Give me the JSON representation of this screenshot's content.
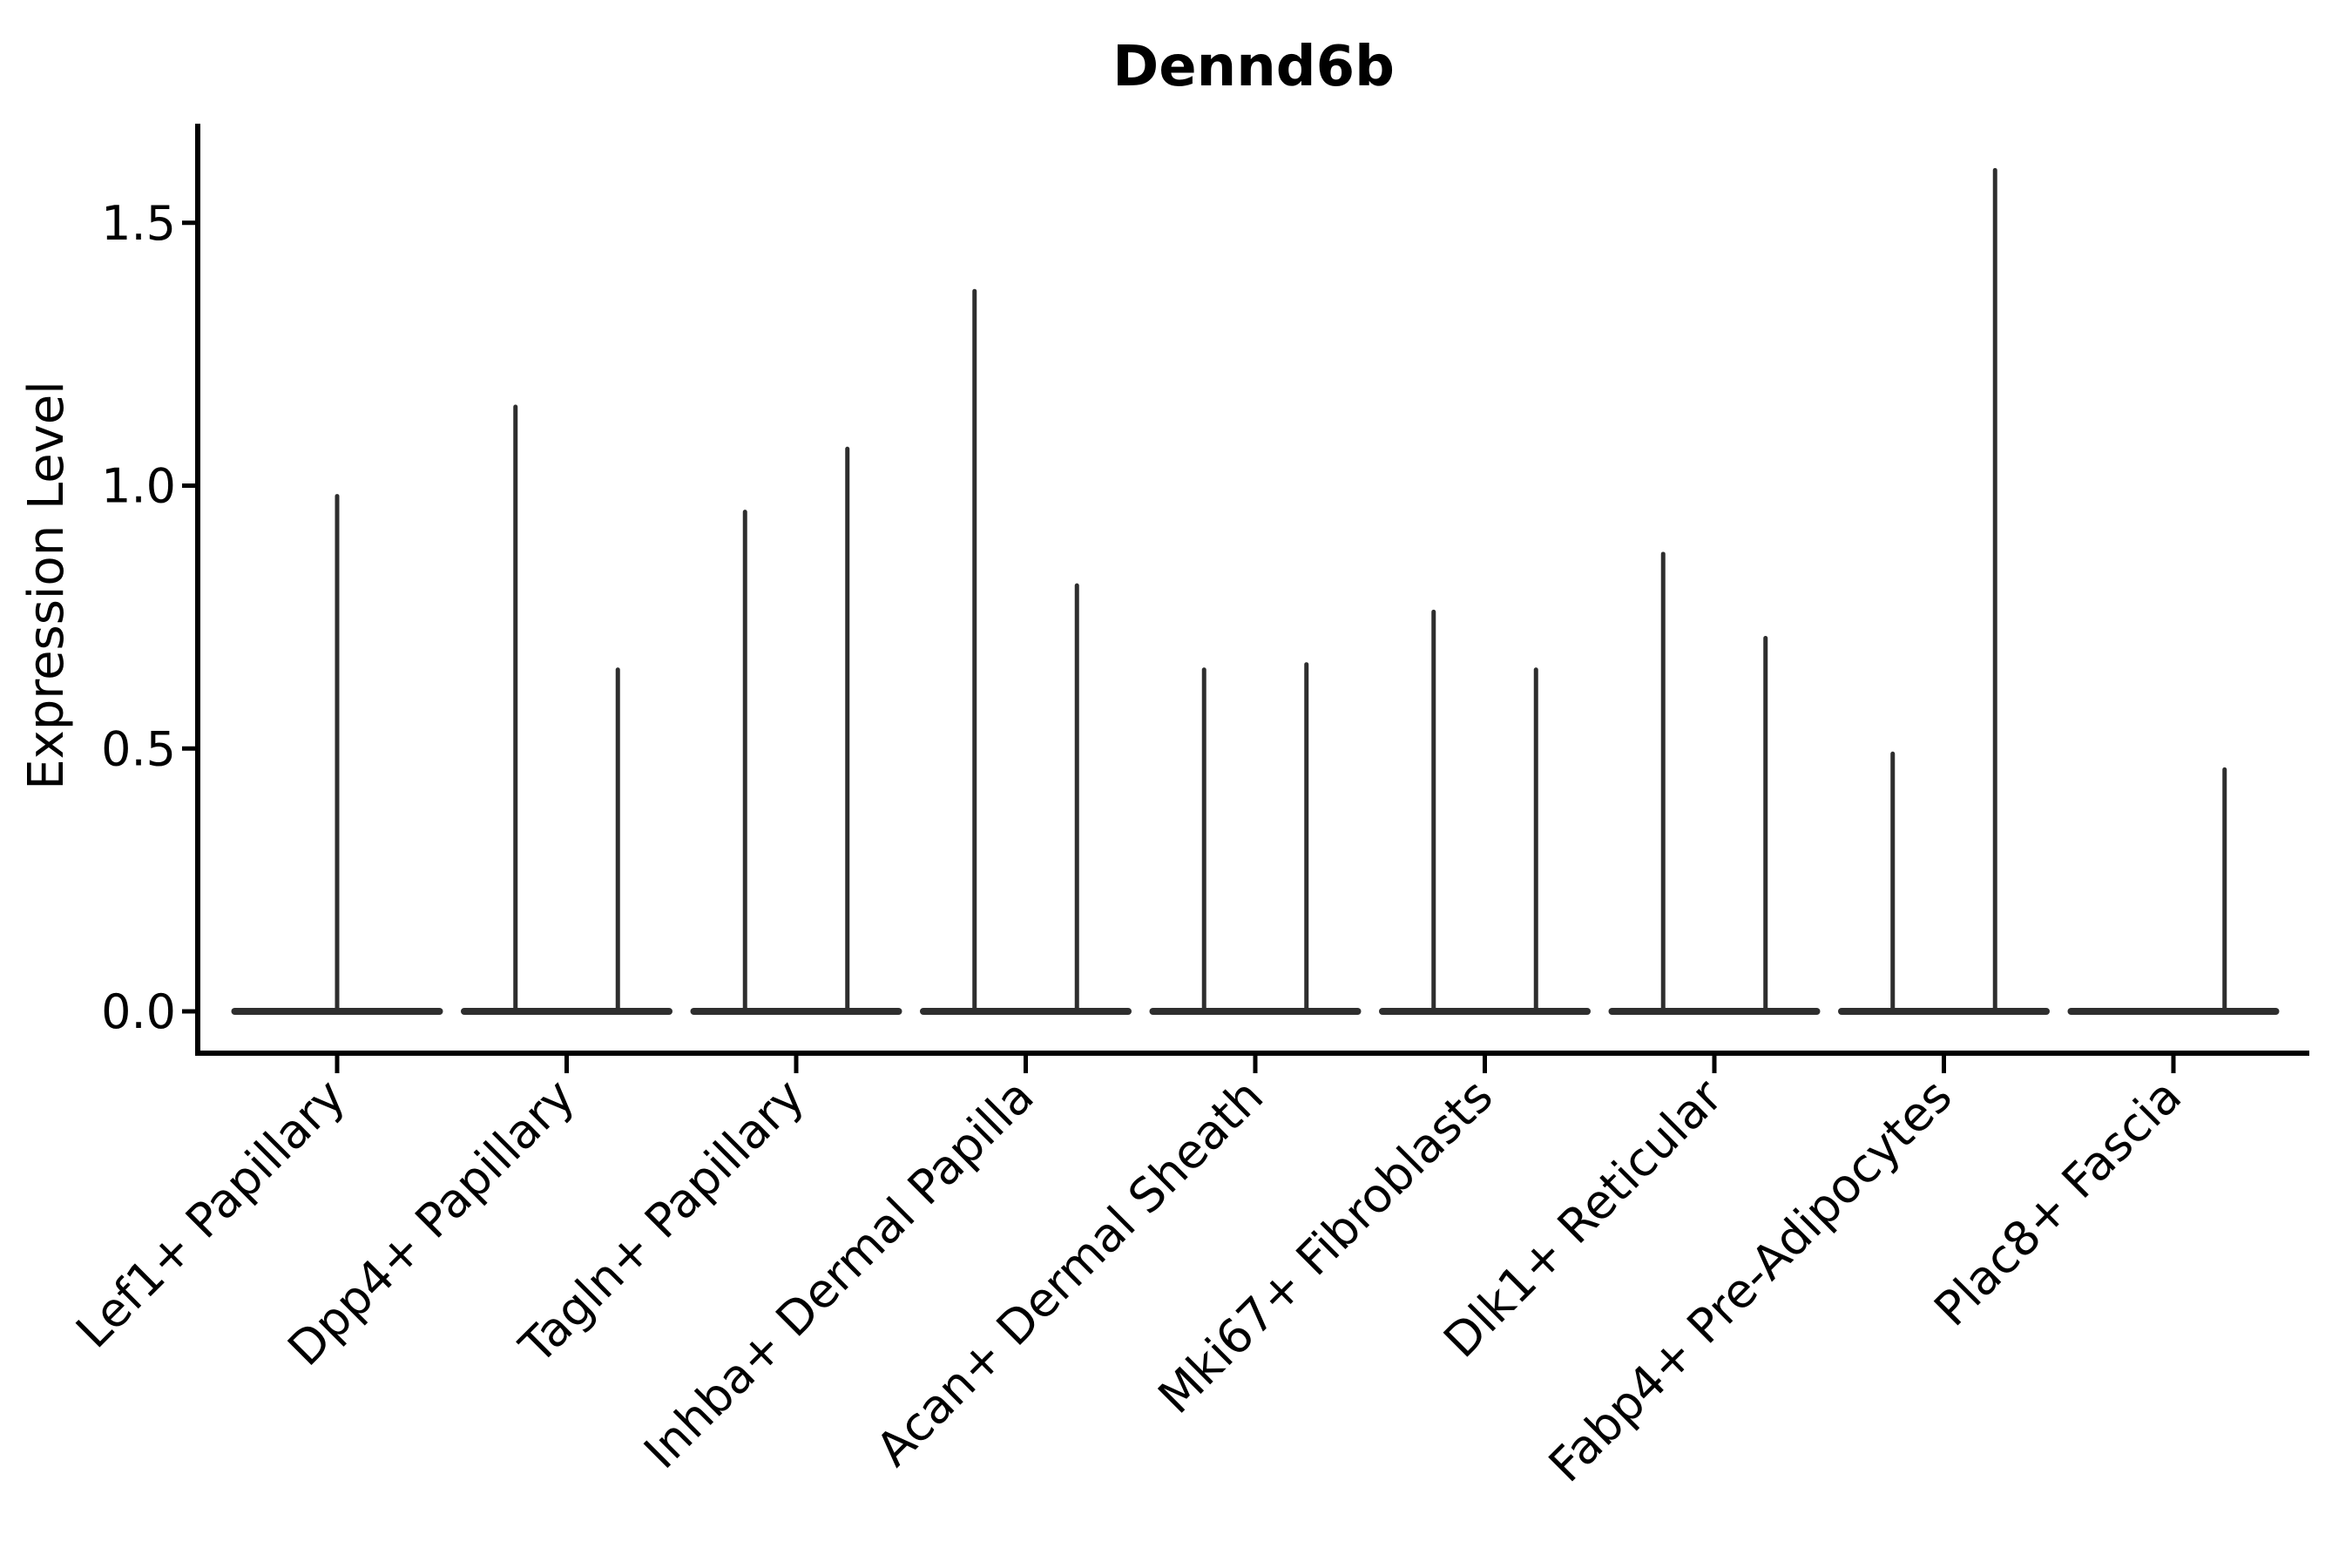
{
  "figure": {
    "title": "Dennd6b",
    "ylabel": "Expression Level"
  },
  "chart_data": {
    "type": "violin",
    "title": "Dennd6b",
    "xlabel": "",
    "ylabel": "Expression Level",
    "ylim": [
      0,
      1.69
    ],
    "yticks": [
      0.0,
      0.5,
      1.0,
      1.5
    ],
    "ytick_labels": [
      "0.0",
      "0.5",
      "1.0",
      "1.5"
    ],
    "grid": false,
    "legend": "none",
    "description": "Seurat-style violin plot of Dennd6b expression; nearly all density sits at 0 so each violin collapses to a flat baseline at 0 with a thin vertical spike reaching its maximum expression value. Most categories contain two side-by-side violins (split groups); Lef1+ Papillary has a single centered violin; the left violin of Plac8+ Fascia has maximum 0 (no spike).",
    "categories": [
      {
        "label": "Lef1+ Papillary",
        "violins": [
          {
            "pos": "center",
            "max": 0.98
          }
        ]
      },
      {
        "label": "Dpp4+ Papillary",
        "violins": [
          {
            "pos": "left",
            "max": 1.15
          },
          {
            "pos": "right",
            "max": 0.65
          }
        ]
      },
      {
        "label": "Tagln+ Papillary",
        "violins": [
          {
            "pos": "left",
            "max": 0.95
          },
          {
            "pos": "right",
            "max": 1.07
          }
        ]
      },
      {
        "label": "Inhba+ Dermal Papilla",
        "violins": [
          {
            "pos": "left",
            "max": 1.37
          },
          {
            "pos": "right",
            "max": 0.81
          }
        ]
      },
      {
        "label": "Acan+ Dermal Sheath",
        "violins": [
          {
            "pos": "left",
            "max": 0.65
          },
          {
            "pos": "right",
            "max": 0.66
          }
        ]
      },
      {
        "label": "Mki67+ Fibroblasts",
        "violins": [
          {
            "pos": "left",
            "max": 0.76
          },
          {
            "pos": "right",
            "max": 0.65
          }
        ]
      },
      {
        "label": "Dlk1+ Reticular",
        "violins": [
          {
            "pos": "left",
            "max": 0.87
          },
          {
            "pos": "right",
            "max": 0.71
          }
        ]
      },
      {
        "label": "Fabp4+ Pre-Adipocytes",
        "violins": [
          {
            "pos": "left",
            "max": 0.49
          },
          {
            "pos": "right",
            "max": 1.6
          }
        ]
      },
      {
        "label": "Plac8+ Fascia",
        "violins": [
          {
            "pos": "left",
            "max": 0.0
          },
          {
            "pos": "right",
            "max": 0.46
          }
        ]
      }
    ],
    "colors": {
      "violin": "#2e2e2e",
      "axis": "#000000",
      "text": "#000000",
      "background": "#ffffff"
    }
  }
}
